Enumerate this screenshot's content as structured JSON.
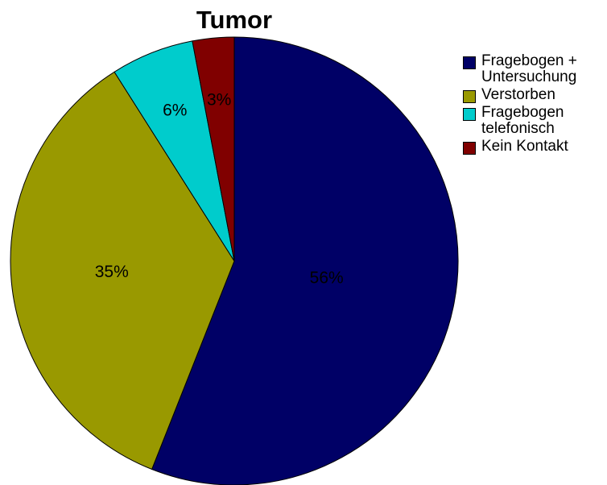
{
  "chart_data": {
    "type": "pie",
    "title": "Tumor",
    "categories": [
      "Fragebogen + Untersuchung",
      "Verstorben",
      "Fragebogen telefonisch",
      "Kein Kontakt"
    ],
    "values": [
      56,
      35,
      6,
      3
    ],
    "value_labels": [
      "56%",
      "35%",
      "6%",
      "3%"
    ],
    "colors": [
      "#000066",
      "#999900",
      "#00cccc",
      "#800000"
    ],
    "legend": "right"
  }
}
